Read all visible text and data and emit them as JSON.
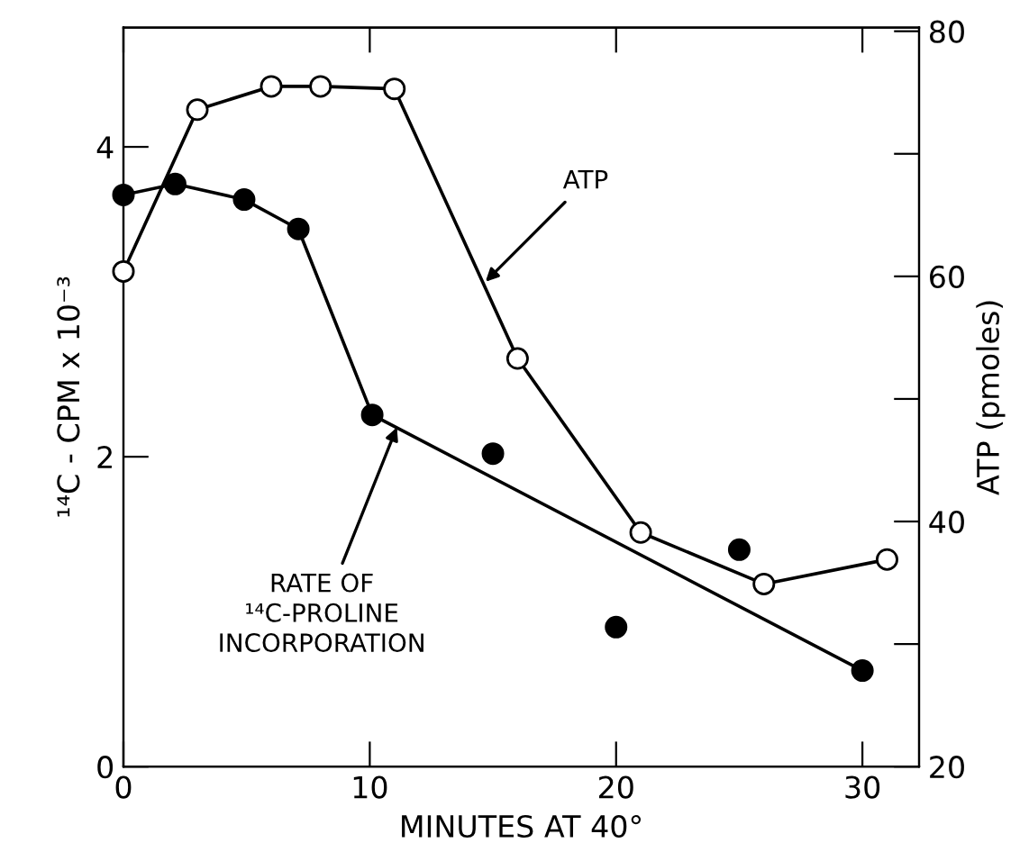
{
  "chart_data": {
    "type": "line",
    "xlabel": "MINUTES AT 40°",
    "ylabel": "¹⁴C - CPM x 10⁻³",
    "y2label": "ATP (pmoles)",
    "xlim": [
      0,
      32.3
    ],
    "xticks": [
      0,
      10,
      20,
      30
    ],
    "ylim": [
      0,
      4.77
    ],
    "yticks": [
      0,
      2,
      4
    ],
    "y2lim": [
      20,
      80.3
    ],
    "y2ticks": [
      20,
      {
        "value": 30,
        "label": null
      },
      40,
      {
        "value": 50,
        "label": null
      },
      60,
      {
        "value": 70,
        "label": null
      },
      80
    ],
    "grid": false,
    "legend": false,
    "marker": "circle",
    "line_style": "solid",
    "series": [
      {
        "color": "#000000",
        "x": [
          0,
          2.1,
          4.9,
          7.1,
          10.1
        ],
        "values": [
          3.69,
          3.76,
          3.66,
          3.47,
          2.27
        ]
      },
      {
        "type": "scatter",
        "color": "#000000",
        "x": [
          15,
          20,
          25,
          30
        ],
        "values": [
          2.02,
          0.9,
          1.4,
          0.62
        ]
      },
      {
        "color": "#000000",
        "marker": "none",
        "x": [
          10.1,
          30
        ],
        "values": [
          2.27,
          0.62
        ]
      },
      {
        "color": "#000000",
        "axis": "y2",
        "x": [
          0,
          3,
          6,
          8,
          11,
          16,
          21,
          26,
          31
        ],
        "values": [
          60.4,
          73.6,
          75.5,
          75.5,
          75.3,
          53.3,
          39.1,
          34.9,
          36.9
        ]
      }
    ],
    "annotations": [
      {
        "text": "ATP",
        "x": 14.7,
        "y": 3.13
      },
      {
        "text": "RATE OF\n¹⁴C-PROLINE\nINCORPORATION",
        "x": 11.1,
        "y": 2.19
      }
    ]
  }
}
